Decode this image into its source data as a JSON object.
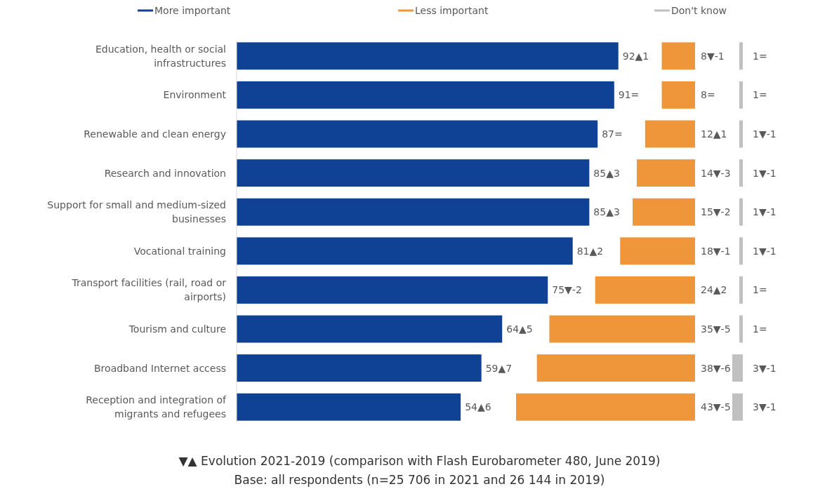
{
  "chart_data": [
    {
      "type": "bar",
      "orientation": "horizontal",
      "categories": [
        "Education, health or social infrastructures",
        "Environment",
        "Renewable and clean energy",
        "Research and innovation",
        "Support for small and medium-sized businesses",
        "Vocational training",
        "Transport facilities (rail, road or airports)",
        "Tourism and culture",
        "Broadband Internet access",
        "Reception and integration of migrants and refugees"
      ],
      "series": [
        {
          "name": "More important",
          "color": "#0f4194",
          "values": [
            92,
            91,
            87,
            85,
            85,
            81,
            75,
            64,
            59,
            54
          ],
          "value_labels": [
            "92▲1",
            "91=",
            "87=",
            "85▲3",
            "85▲3",
            "81▲2",
            "75▼-2",
            "64▲5",
            "59▲7",
            "54▲6"
          ]
        }
      ],
      "legend": "top",
      "tick_labels": "y",
      "annotations": [
        "▼▲ Evolution 2021-2019 (comparison with Flash Eurobarometer 480, June 2019)",
        "Base: all respondents (n=25 706 in 2021 and 26 144 in 2019)"
      ]
    },
    {
      "type": "bar",
      "orientation": "horizontal",
      "categories": [
        null,
        null,
        null,
        null,
        null,
        null,
        null,
        null,
        null,
        null
      ],
      "series": [
        {
          "name": "Less important",
          "color": "#f0963a",
          "values": [
            8,
            8,
            12,
            14,
            15,
            18,
            24,
            35,
            38,
            43
          ],
          "value_labels": [
            "8▼-1",
            "8=",
            "12▲1",
            "14▼-3",
            "15▼-2",
            "18▼-1",
            "24▲2",
            "35▼-5",
            "38▼-6",
            "43▼-5"
          ]
        }
      ],
      "legend": "top",
      "tick_labels": false
    },
    {
      "type": "bar",
      "orientation": "horizontal",
      "categories": [
        null,
        null,
        null,
        null,
        null,
        null,
        null,
        null,
        null,
        null
      ],
      "series": [
        {
          "name": "Don't know",
          "color": "#c0c0c0",
          "values": [
            1,
            1,
            1,
            1,
            1,
            1,
            1,
            1,
            3,
            3
          ],
          "value_labels": [
            "1=",
            "1=",
            "1▼-1",
            "1▼-1",
            "1▼-1",
            "1▼-1",
            "1=",
            "1=",
            "3▼-1",
            "3▼-1"
          ]
        }
      ],
      "legend": "top",
      "tick_labels": false
    }
  ]
}
